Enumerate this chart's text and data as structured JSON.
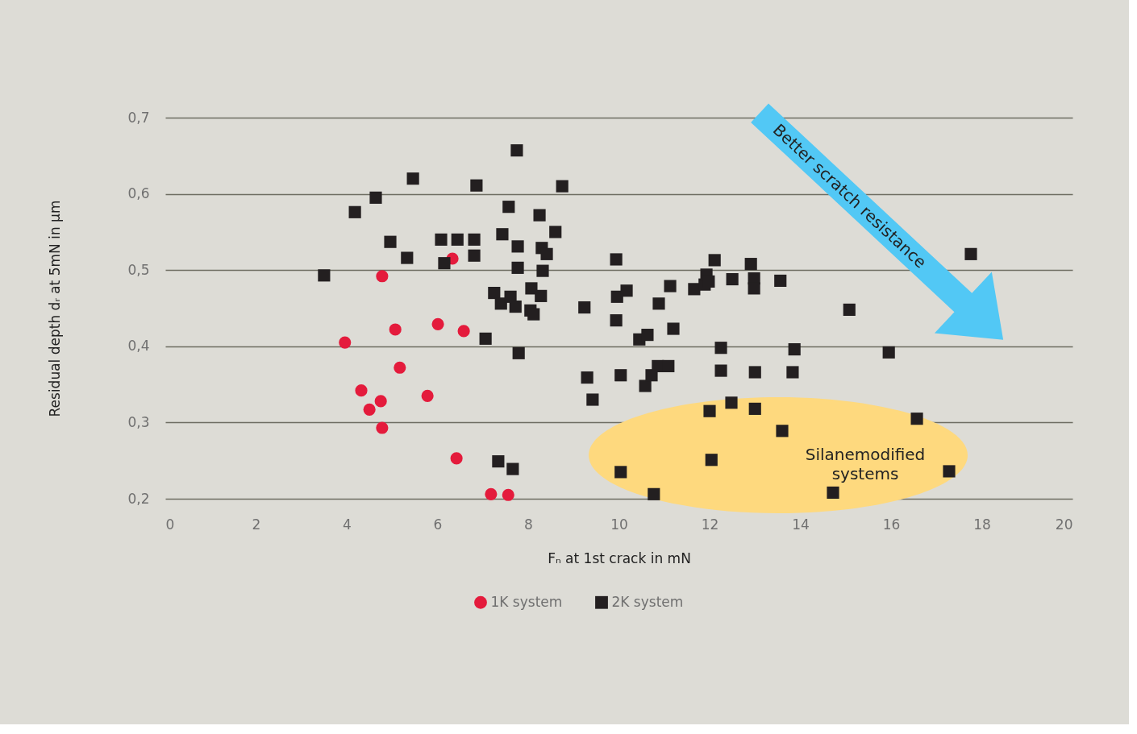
{
  "chart_data": {
    "type": "scatter",
    "xlabel": "Fₙ at 1st crack in mN",
    "ylabel": "Residual depth dᵣ at 5mN in µm",
    "xlim": [
      0,
      20
    ],
    "xticks": [
      0,
      2,
      4,
      6,
      8,
      10,
      12,
      14,
      16,
      18,
      20
    ],
    "ylim": [
      0.2,
      0.7
    ],
    "yticks": [
      {
        "value": 0.2,
        "label": "0,2"
      },
      {
        "value": 0.3,
        "label": "0,3"
      },
      {
        "value": 0.4,
        "label": "0,4"
      },
      {
        "value": 0.5,
        "label": "0,5"
      },
      {
        "value": 0.6,
        "label": "0,6"
      },
      {
        "value": 0.7,
        "label": "0,7"
      }
    ],
    "grid": "y",
    "legend": "bottom",
    "annotations": [
      "Better scratch resistance",
      "Silanemodified systems"
    ],
    "series": [
      {
        "name": "1K system",
        "color": "#e41b3c",
        "marker": "circle",
        "x": [
          3.96,
          4.78,
          6.33,
          5.07,
          6.01,
          6.58,
          5.17,
          4.32,
          4.75,
          4.5,
          5.78,
          4.78,
          6.42,
          7.18,
          7.56
        ],
        "values": [
          0.405,
          0.492,
          0.515,
          0.422,
          0.429,
          0.42,
          0.372,
          0.342,
          0.328,
          0.317,
          0.335,
          0.293,
          0.253,
          0.206,
          0.205
        ]
      },
      {
        "name": "2K system",
        "color": "#231f20",
        "marker": "square",
        "x": [
          3.5,
          4.18,
          4.64,
          4.96,
          5.33,
          5.46,
          6.08,
          6.15,
          6.44,
          6.86,
          6.81,
          6.81,
          7.43,
          7.57,
          7.75,
          7.77,
          7.77,
          7.25,
          7.4,
          7.61,
          7.72,
          7.06,
          7.79,
          8.25,
          8.3,
          8.41,
          8.32,
          8.6,
          8.75,
          8.07,
          8.28,
          8.05,
          8.12,
          9.24,
          9.3,
          9.42,
          9.94,
          9.96,
          10.17,
          9.94,
          10.04,
          10.45,
          10.63,
          10.58,
          10.72,
          10.88,
          11.13,
          11.2,
          10.86,
          11.09,
          11.66,
          11.89,
          11.93,
          11.98,
          12.11,
          12.5,
          12.91,
          12.98,
          12.98,
          13.56,
          12.25,
          12.25,
          13.0,
          13.87,
          13.83,
          12.0,
          12.48,
          13.0,
          13.6,
          12.04,
          10.04,
          10.77,
          14.72,
          15.08,
          15.95,
          16.57,
          17.28,
          17.76,
          7.34,
          7.66
        ],
        "values": [
          0.493,
          0.576,
          0.595,
          0.537,
          0.516,
          0.62,
          0.54,
          0.509,
          0.54,
          0.611,
          0.54,
          0.519,
          0.547,
          0.583,
          0.657,
          0.531,
          0.503,
          0.47,
          0.456,
          0.465,
          0.452,
          0.41,
          0.391,
          0.572,
          0.529,
          0.521,
          0.499,
          0.55,
          0.61,
          0.476,
          0.466,
          0.447,
          0.442,
          0.451,
          0.359,
          0.33,
          0.514,
          0.465,
          0.473,
          0.434,
          0.362,
          0.409,
          0.415,
          0.348,
          0.362,
          0.456,
          0.479,
          0.423,
          0.374,
          0.374,
          0.475,
          0.481,
          0.494,
          0.485,
          0.513,
          0.488,
          0.508,
          0.489,
          0.476,
          0.486,
          0.398,
          0.368,
          0.366,
          0.396,
          0.366,
          0.315,
          0.326,
          0.318,
          0.289,
          0.251,
          0.235,
          0.206,
          0.208,
          0.448,
          0.392,
          0.305,
          0.236,
          0.521,
          0.249,
          0.239
        ]
      }
    ]
  }
}
